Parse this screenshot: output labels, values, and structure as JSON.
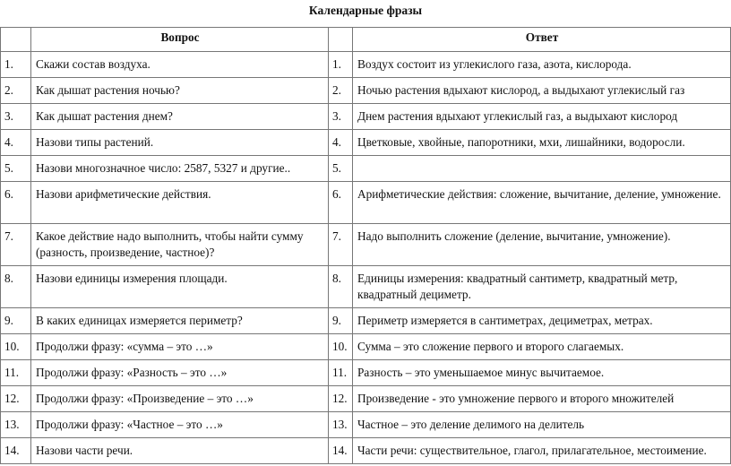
{
  "title": "Календарные фразы",
  "headers": {
    "question": "Вопрос",
    "answer": "Ответ"
  },
  "rows": [
    {
      "qn": "1.",
      "q": "Скажи состав воздуха.",
      "an": "1.",
      "a": "Воздух состоит из углекислого газа, азота, кислорода."
    },
    {
      "qn": "2.",
      "q": "Как дышат растения ночью?",
      "an": "2.",
      "a": "Ночью растения вдыхают кислород, а выдыхают углекислый газ"
    },
    {
      "qn": "3.",
      "q": "Как дышат растения днем?",
      "an": "3.",
      "a": "Днем растения вдыхают углекислый газ, а выдыхают кислород"
    },
    {
      "qn": "4.",
      "q": "Назови типы растений.",
      "an": "4.",
      "a": "Цветковые, хвойные, папоротники, мхи, лишайники, водоросли."
    },
    {
      "qn": "5.",
      "q": "Назови многозначное число: 2587, 5327 и другие..",
      "an": "5.",
      "a": ""
    },
    {
      "qn": "6.",
      "q": "Назови арифметические действия.",
      "an": "6.",
      "a": "Арифметические действия: сложение, вычитание, деление, умножение."
    },
    {
      "qn": "7.",
      "q": "Какое действие надо выполнить, чтобы найти сумму (разность, произведение, частное)?",
      "an": "7.",
      "a": "Надо выполнить сложение (деление, вычитание, умножение)."
    },
    {
      "qn": "8.",
      "q": "Назови единицы измерения площади.",
      "an": "8.",
      "a": "Единицы измерения: квадратный сантиметр, квадратный метр, квадратный дециметр."
    },
    {
      "qn": "9.",
      "q": "В каких единицах измеряется периметр?",
      "an": "9.",
      "a": "Периметр измеряется в сантиметрах, дециметрах, метрах."
    },
    {
      "qn": "10.",
      "q": "Продолжи фразу: «сумма – это …»",
      "an": "10.",
      "a": "Сумма – это сложение первого и второго слагаемых."
    },
    {
      "qn": "11.",
      "q": "Продолжи фразу: «Разность – это …»",
      "an": "11.",
      "a": "Разность – это уменьшаемое минус вычитаемое."
    },
    {
      "qn": "12.",
      "q": "Продолжи фразу: «Произведение – это …»",
      "an": "12.",
      "a": "Произведение - это умножение первого и второго множителей"
    },
    {
      "qn": "13.",
      "q": "Продолжи фразу: «Частное – это …»",
      "an": "13.",
      "a": "Частное – это деление делимого на делитель"
    },
    {
      "qn": "14.",
      "q": "Назови части речи.",
      "an": "14.",
      "a": "Части речи: существительное, глагол, прилагательное, местоимение."
    }
  ]
}
